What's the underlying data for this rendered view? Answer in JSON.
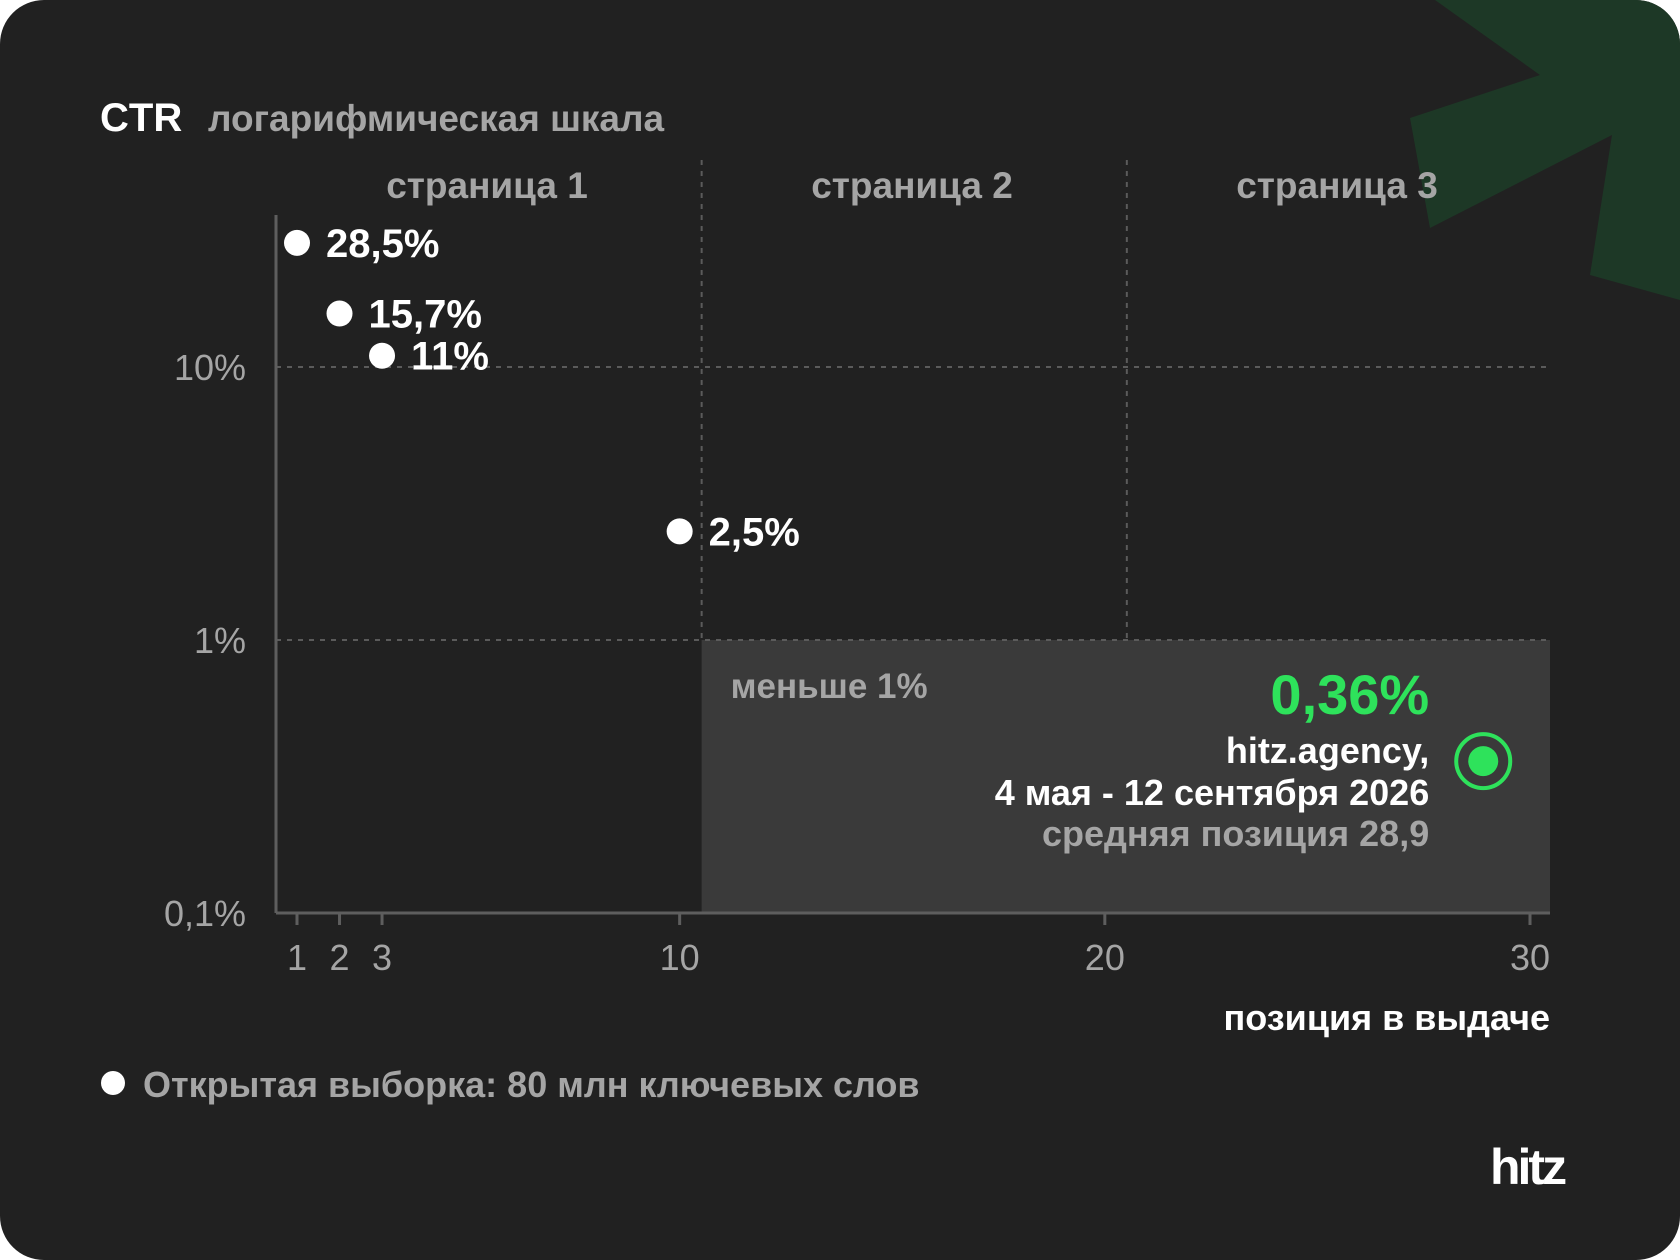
{
  "title": {
    "metric": "CTR",
    "scale_note": "логарифмическая шкала"
  },
  "colors": {
    "background": "#212121",
    "accent": "#2ee25b",
    "zone": "#3a3a3a",
    "corner_shape": "#1d3826"
  },
  "chart_data": {
    "type": "scatter",
    "x_scale": "linear",
    "y_scale": "log",
    "xlim": [
      0,
      30
    ],
    "ylim": [
      0.1,
      30
    ],
    "xlabel": "позиция в выдаче",
    "x_ticks": [
      1,
      2,
      3,
      10,
      20,
      30
    ],
    "x_tick_labels": [
      "1",
      "2",
      "3",
      "10",
      "20",
      "30"
    ],
    "y_ticks": [
      0.1,
      1,
      10
    ],
    "y_tick_labels": [
      "0,1%",
      "1%",
      "10%"
    ],
    "grid": "dashed at y=1%, 10% and x=10, 20",
    "pages": [
      {
        "label": "страница 1",
        "from": 0,
        "to": 10
      },
      {
        "label": "страница 2",
        "from": 10,
        "to": 20
      },
      {
        "label": "страница 3",
        "from": 20,
        "to": 30
      }
    ],
    "series": [
      {
        "name": "Открытая выборка: 80 млн ключевых слов",
        "points": [
          {
            "x": 1,
            "y": 28.5,
            "label": "28,5%"
          },
          {
            "x": 2,
            "y": 15.7,
            "label": "15,7%"
          },
          {
            "x": 3,
            "y": 11,
            "label": "11%"
          },
          {
            "x": 10,
            "y": 2.5,
            "label": "2,5%"
          }
        ]
      }
    ],
    "zone": {
      "label": "меньше 1%",
      "x_from": 10,
      "x_to": 30,
      "y_from": 0.1,
      "y_to": 1
    },
    "highlight": {
      "x": 28.9,
      "y": 0.36,
      "value_label": "0,36%",
      "site": "hitz.agency,",
      "dates": "4 мая - 12 сентября 2026",
      "position_text": "средняя позиция 28,9"
    },
    "legend_position": "bottom-left"
  },
  "logo": {
    "text": "hitz"
  }
}
